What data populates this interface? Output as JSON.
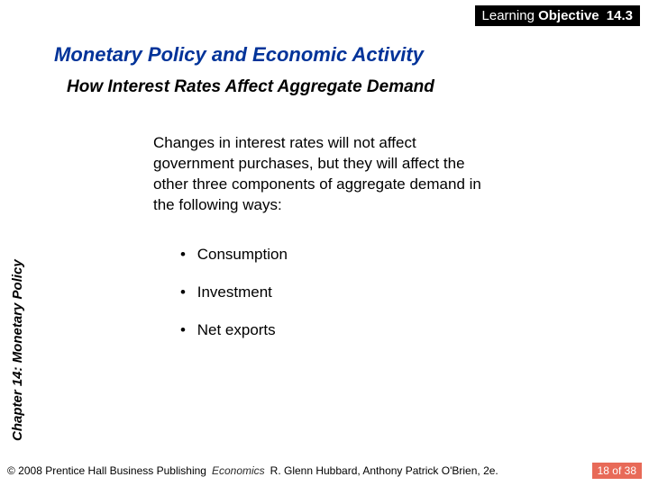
{
  "lo_badge": {
    "label": "Learning",
    "label2": "Objective",
    "number": "14.3"
  },
  "title": "Monetary Policy and Economic Activity",
  "subtitle": "How Interest Rates Affect Aggregate Demand",
  "body": "Changes in interest rates will not affect government purchases, but they will affect the other three components of aggregate demand in the following ways:",
  "bullets": [
    "Consumption",
    "Investment",
    "Net exports"
  ],
  "chapter_label": "Chapter 14:  Monetary Policy",
  "footer": {
    "publisher": "© 2008 Prentice Hall Business Publishing",
    "book_title": "Economics",
    "authors": "R. Glenn Hubbard, Anthony Patrick O'Brien, 2e.",
    "page_current": "18",
    "page_of": "of",
    "page_total": "38"
  },
  "colors": {
    "title_color": "#003399",
    "lo_bg": "#000000",
    "lo_fg": "#ffffff",
    "page_badge_bg": "#e86a58",
    "page_badge_fg": "#ffffff",
    "text": "#000000"
  }
}
